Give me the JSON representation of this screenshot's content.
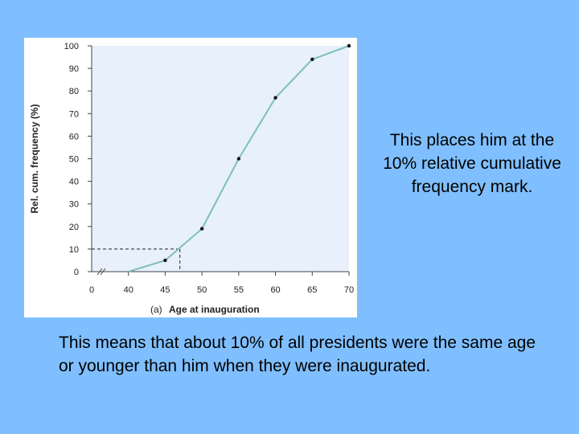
{
  "chart_data": {
    "type": "line",
    "panel_label": "(a)",
    "xlabel": "Age at inauguration",
    "ylabel": "Rel. cum. frequency (%)",
    "x_ticks": [
      "0",
      "40",
      "45",
      "50",
      "55",
      "60",
      "65",
      "70"
    ],
    "y_ticks": [
      "0",
      "10",
      "20",
      "30",
      "40",
      "50",
      "60",
      "70",
      "80",
      "90",
      "100"
    ],
    "xlim": [
      35,
      70
    ],
    "ylim": [
      0,
      100
    ],
    "axis_break": true,
    "plot_background": "#e8f0fb",
    "line_color": "#7fbfb8",
    "series": [
      {
        "x": [
          40,
          45,
          50,
          55,
          60,
          65,
          70
        ],
        "y": [
          0,
          5,
          19,
          50,
          77,
          94,
          100
        ]
      }
    ],
    "reference_point": {
      "x": 47,
      "y": 10
    }
  },
  "text": {
    "side_note": "This places him at the 10% relative cumulative frequency mark.",
    "bottom_note": "This means that about 10% of all presidents were the same age or younger than him when they were inaugurated."
  }
}
